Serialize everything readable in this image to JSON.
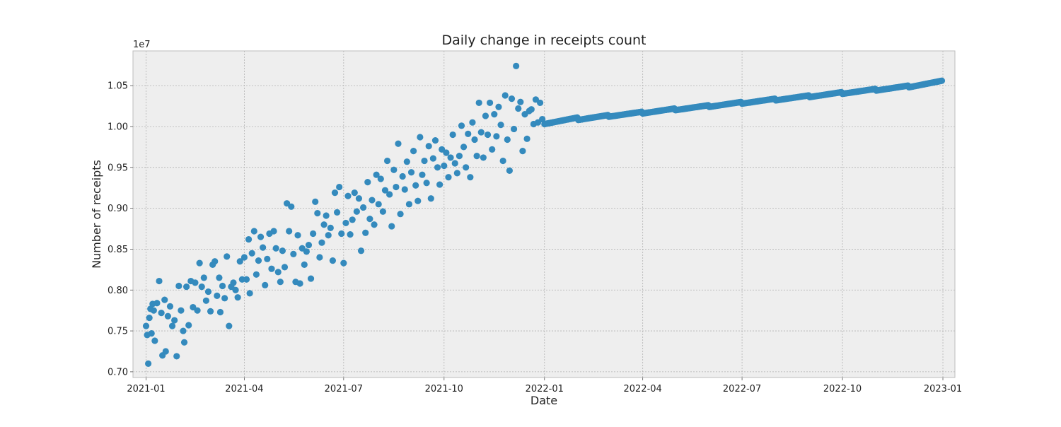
{
  "chart_data": {
    "type": "scatter",
    "title": "Daily change in receipts count",
    "xlabel": "Date",
    "ylabel": "Number of receipts",
    "y_offset_label": "1e7",
    "y_scale_exponent": 7,
    "x_axis_type": "date",
    "xlim": [
      "2020-12-20",
      "2023-01-12"
    ],
    "ylim": [
      0.693,
      1.0925
    ],
    "x_ticks": [
      "2021-01",
      "2021-04",
      "2021-07",
      "2021-10",
      "2022-01",
      "2022-04",
      "2022-07",
      "2022-10",
      "2023-01"
    ],
    "y_ticks": [
      0.7,
      0.75,
      0.8,
      0.85,
      0.9,
      0.95,
      1.0,
      1.05
    ],
    "y_tick_labels": [
      "0.70",
      "0.75",
      "0.80",
      "0.85",
      "0.90",
      "0.95",
      "1.00",
      "1.05"
    ],
    "grid": true,
    "legend": "none",
    "colors": {
      "marker": "#348abd",
      "plot_bg": "#eeeeee",
      "grid": "#b2b2b2",
      "frame": "#bcbcbc"
    },
    "series": [
      {
        "values_note_units": "x1e7",
        "points_2021": [
          [
            "2021-01-01",
            0.756
          ],
          [
            "2021-01-02",
            0.745
          ],
          [
            "2021-01-03",
            0.71
          ],
          [
            "2021-01-04",
            0.766
          ],
          [
            "2021-01-05",
            0.777
          ],
          [
            "2021-01-06",
            0.747
          ],
          [
            "2021-01-07",
            0.783
          ],
          [
            "2021-01-08",
            0.775
          ],
          [
            "2021-01-09",
            0.738
          ],
          [
            "2021-01-11",
            0.784
          ],
          [
            "2021-01-13",
            0.811
          ],
          [
            "2021-01-15",
            0.772
          ],
          [
            "2021-01-16",
            0.72
          ],
          [
            "2021-01-18",
            0.788
          ],
          [
            "2021-01-19",
            0.725
          ],
          [
            "2021-01-21",
            0.768
          ],
          [
            "2021-01-23",
            0.78
          ],
          [
            "2021-01-25",
            0.756
          ],
          [
            "2021-01-27",
            0.763
          ],
          [
            "2021-01-29",
            0.719
          ],
          [
            "2021-01-31",
            0.805
          ],
          [
            "2021-02-02",
            0.775
          ],
          [
            "2021-02-04",
            0.75
          ],
          [
            "2021-02-05",
            0.736
          ],
          [
            "2021-02-07",
            0.804
          ],
          [
            "2021-02-09",
            0.757
          ],
          [
            "2021-02-11",
            0.811
          ],
          [
            "2021-02-13",
            0.779
          ],
          [
            "2021-02-15",
            0.809
          ],
          [
            "2021-02-17",
            0.775
          ],
          [
            "2021-02-19",
            0.833
          ],
          [
            "2021-02-21",
            0.804
          ],
          [
            "2021-02-23",
            0.815
          ],
          [
            "2021-02-25",
            0.787
          ],
          [
            "2021-02-27",
            0.798
          ],
          [
            "2021-03-01",
            0.774
          ],
          [
            "2021-03-03",
            0.831
          ],
          [
            "2021-03-05",
            0.835
          ],
          [
            "2021-03-07",
            0.793
          ],
          [
            "2021-03-09",
            0.815
          ],
          [
            "2021-03-10",
            0.773
          ],
          [
            "2021-03-12",
            0.805
          ],
          [
            "2021-03-14",
            0.79
          ],
          [
            "2021-03-16",
            0.841
          ],
          [
            "2021-03-18",
            0.756
          ],
          [
            "2021-03-20",
            0.804
          ],
          [
            "2021-03-22",
            0.809
          ],
          [
            "2021-03-24",
            0.8
          ],
          [
            "2021-03-26",
            0.791
          ],
          [
            "2021-03-28",
            0.835
          ],
          [
            "2021-03-30",
            0.813
          ],
          [
            "2021-04-01",
            0.84
          ],
          [
            "2021-04-03",
            0.813
          ],
          [
            "2021-04-05",
            0.862
          ],
          [
            "2021-04-06",
            0.796
          ],
          [
            "2021-04-08",
            0.845
          ],
          [
            "2021-04-10",
            0.872
          ],
          [
            "2021-04-12",
            0.819
          ],
          [
            "2021-04-14",
            0.836
          ],
          [
            "2021-04-16",
            0.865
          ],
          [
            "2021-04-18",
            0.852
          ],
          [
            "2021-04-20",
            0.806
          ],
          [
            "2021-04-22",
            0.838
          ],
          [
            "2021-04-24",
            0.869
          ],
          [
            "2021-04-26",
            0.826
          ],
          [
            "2021-04-28",
            0.872
          ],
          [
            "2021-04-30",
            0.851
          ],
          [
            "2021-05-02",
            0.822
          ],
          [
            "2021-05-04",
            0.81
          ],
          [
            "2021-05-06",
            0.848
          ],
          [
            "2021-05-08",
            0.828
          ],
          [
            "2021-05-10",
            0.906
          ],
          [
            "2021-05-12",
            0.872
          ],
          [
            "2021-05-14",
            0.902
          ],
          [
            "2021-05-16",
            0.844
          ],
          [
            "2021-05-18",
            0.81
          ],
          [
            "2021-05-20",
            0.867
          ],
          [
            "2021-05-22",
            0.808
          ],
          [
            "2021-05-24",
            0.851
          ],
          [
            "2021-05-26",
            0.831
          ],
          [
            "2021-05-28",
            0.847
          ],
          [
            "2021-05-30",
            0.855
          ],
          [
            "2021-06-01",
            0.814
          ],
          [
            "2021-06-03",
            0.869
          ],
          [
            "2021-06-05",
            0.908
          ],
          [
            "2021-06-07",
            0.894
          ],
          [
            "2021-06-09",
            0.84
          ],
          [
            "2021-06-11",
            0.858
          ],
          [
            "2021-06-13",
            0.88
          ],
          [
            "2021-06-15",
            0.891
          ],
          [
            "2021-06-17",
            0.867
          ],
          [
            "2021-06-19",
            0.876
          ],
          [
            "2021-06-21",
            0.836
          ],
          [
            "2021-06-23",
            0.919
          ],
          [
            "2021-06-25",
            0.895
          ],
          [
            "2021-06-27",
            0.926
          ],
          [
            "2021-06-29",
            0.869
          ],
          [
            "2021-07-01",
            0.833
          ],
          [
            "2021-07-03",
            0.882
          ],
          [
            "2021-07-05",
            0.915
          ],
          [
            "2021-07-07",
            0.868
          ],
          [
            "2021-07-09",
            0.886
          ],
          [
            "2021-07-11",
            0.919
          ],
          [
            "2021-07-13",
            0.896
          ],
          [
            "2021-07-15",
            0.912
          ],
          [
            "2021-07-17",
            0.848
          ],
          [
            "2021-07-19",
            0.901
          ],
          [
            "2021-07-21",
            0.87
          ],
          [
            "2021-07-23",
            0.932
          ],
          [
            "2021-07-25",
            0.887
          ],
          [
            "2021-07-27",
            0.91
          ],
          [
            "2021-07-29",
            0.88
          ],
          [
            "2021-07-31",
            0.941
          ],
          [
            "2021-08-02",
            0.905
          ],
          [
            "2021-08-04",
            0.936
          ],
          [
            "2021-08-06",
            0.896
          ],
          [
            "2021-08-08",
            0.922
          ],
          [
            "2021-08-10",
            0.958
          ],
          [
            "2021-08-12",
            0.917
          ],
          [
            "2021-08-14",
            0.878
          ],
          [
            "2021-08-16",
            0.947
          ],
          [
            "2021-08-18",
            0.926
          ],
          [
            "2021-08-20",
            0.979
          ],
          [
            "2021-08-22",
            0.893
          ],
          [
            "2021-08-24",
            0.939
          ],
          [
            "2021-08-26",
            0.923
          ],
          [
            "2021-08-28",
            0.957
          ],
          [
            "2021-08-30",
            0.905
          ],
          [
            "2021-09-01",
            0.944
          ],
          [
            "2021-09-03",
            0.97
          ],
          [
            "2021-09-05",
            0.928
          ],
          [
            "2021-09-07",
            0.909
          ],
          [
            "2021-09-09",
            0.987
          ],
          [
            "2021-09-11",
            0.941
          ],
          [
            "2021-09-13",
            0.958
          ],
          [
            "2021-09-15",
            0.931
          ],
          [
            "2021-09-17",
            0.976
          ],
          [
            "2021-09-19",
            0.912
          ],
          [
            "2021-09-21",
            0.961
          ],
          [
            "2021-09-23",
            0.983
          ],
          [
            "2021-09-25",
            0.95
          ],
          [
            "2021-09-27",
            0.929
          ],
          [
            "2021-09-29",
            0.972
          ],
          [
            "2021-10-01",
            0.952
          ],
          [
            "2021-10-03",
            0.968
          ],
          [
            "2021-10-05",
            0.938
          ],
          [
            "2021-10-07",
            0.962
          ],
          [
            "2021-10-09",
            0.99
          ],
          [
            "2021-10-11",
            0.955
          ],
          [
            "2021-10-13",
            0.943
          ],
          [
            "2021-10-15",
            0.964
          ],
          [
            "2021-10-17",
            1.001
          ],
          [
            "2021-10-19",
            0.975
          ],
          [
            "2021-10-21",
            0.95
          ],
          [
            "2021-10-23",
            0.991
          ],
          [
            "2021-10-25",
            0.938
          ],
          [
            "2021-10-27",
            1.005
          ],
          [
            "2021-10-29",
            0.984
          ],
          [
            "2021-10-31",
            0.964
          ],
          [
            "2021-11-02",
            1.029
          ],
          [
            "2021-11-04",
            0.993
          ],
          [
            "2021-11-06",
            0.962
          ],
          [
            "2021-11-08",
            1.013
          ],
          [
            "2021-11-10",
            0.99
          ],
          [
            "2021-11-12",
            1.029
          ],
          [
            "2021-11-14",
            0.972
          ],
          [
            "2021-11-16",
            1.015
          ],
          [
            "2021-11-18",
            0.988
          ],
          [
            "2021-11-20",
            1.024
          ],
          [
            "2021-11-22",
            1.002
          ],
          [
            "2021-11-24",
            0.958
          ],
          [
            "2021-11-26",
            1.038
          ],
          [
            "2021-11-28",
            0.984
          ],
          [
            "2021-11-30",
            0.946
          ],
          [
            "2021-12-02",
            1.034
          ],
          [
            "2021-12-04",
            0.997
          ],
          [
            "2021-12-06",
            1.074
          ],
          [
            "2021-12-08",
            1.022
          ],
          [
            "2021-12-10",
            1.03
          ],
          [
            "2021-12-12",
            0.97
          ],
          [
            "2021-12-14",
            1.015
          ],
          [
            "2021-12-16",
            0.985
          ],
          [
            "2021-12-18",
            1.019
          ],
          [
            "2021-12-20",
            1.021
          ],
          [
            "2021-12-22",
            1.003
          ],
          [
            "2021-12-24",
            1.033
          ],
          [
            "2021-12-26",
            1.005
          ],
          [
            "2021-12-28",
            1.029
          ],
          [
            "2021-12-30",
            1.009
          ]
        ],
        "trend_2022": {
          "start_date": "2022-01-01",
          "end_date": "2022-12-31",
          "monthly_start_values": [
            1.003,
            1.008,
            1.012,
            1.016,
            1.02,
            1.024,
            1.028,
            1.032,
            1.036,
            1.04,
            1.044,
            1.048
          ],
          "monthly_end_values": [
            1.011,
            1.014,
            1.018,
            1.022,
            1.026,
            1.03,
            1.034,
            1.038,
            1.042,
            1.046,
            1.05,
            1.056
          ]
        }
      }
    ]
  }
}
